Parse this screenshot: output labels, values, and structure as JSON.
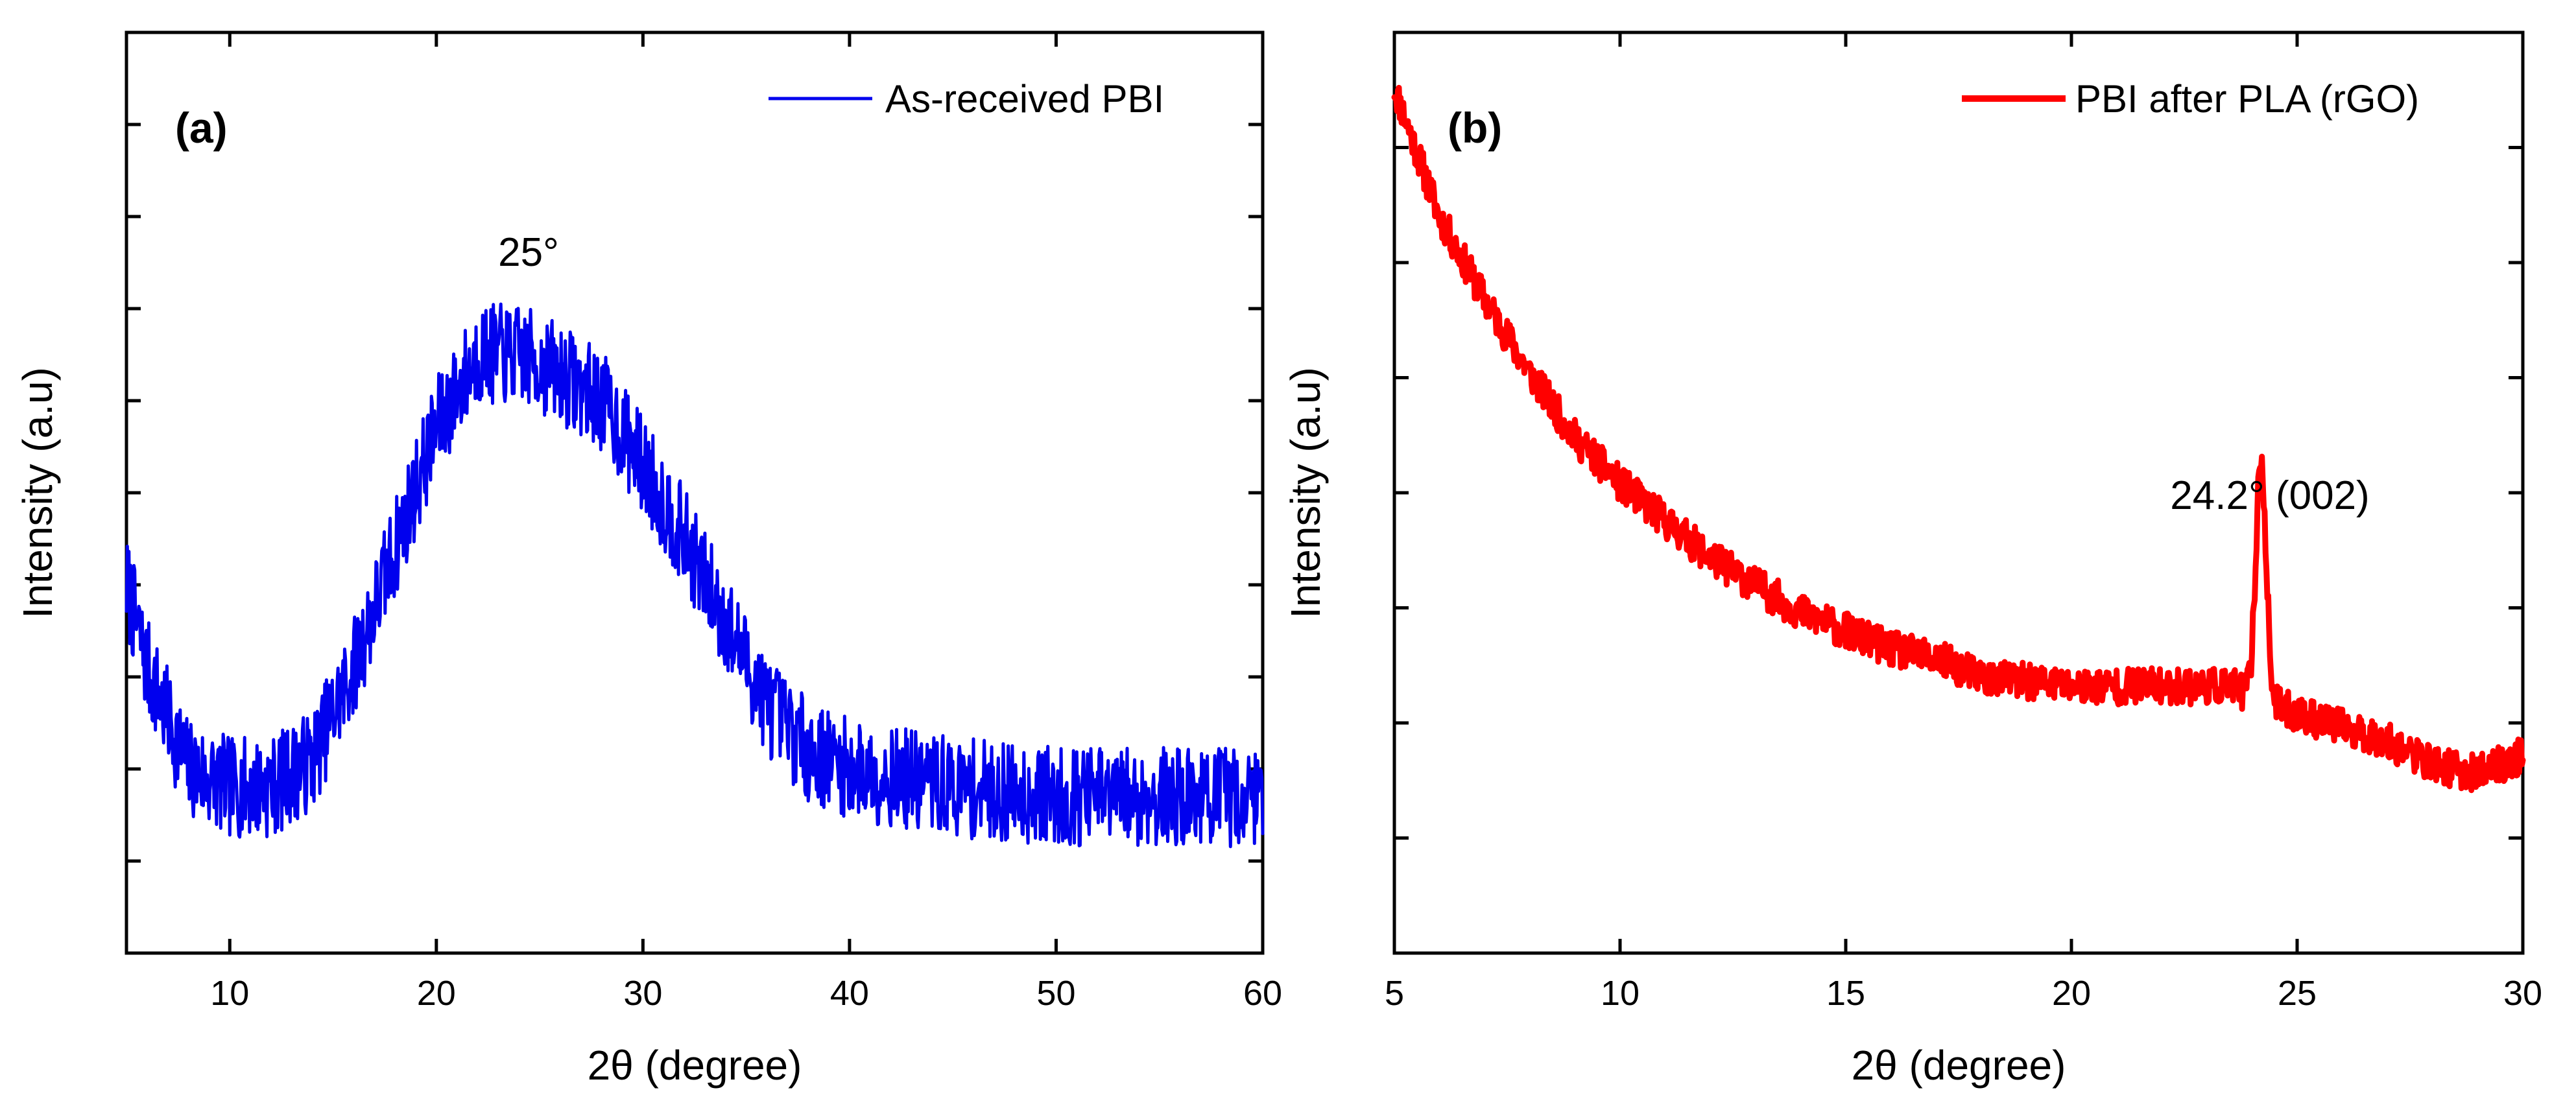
{
  "chart_data": [
    {
      "type": "line",
      "panel_label": "(a)",
      "xlabel": "2θ (degree)",
      "ylabel": "Intensity (a.u)",
      "xlim": [
        5,
        60
      ],
      "ylim": [
        0,
        10
      ],
      "x_ticks": [
        10,
        20,
        30,
        40,
        50,
        60
      ],
      "y_tick_count": 9,
      "legend": {
        "position": "top-right"
      },
      "annotations": [
        {
          "text": "25°",
          "x": 25,
          "y": 8.1
        }
      ],
      "series": [
        {
          "name": "As-received PBI",
          "color": "#0000ee",
          "noise": 0.55,
          "seed": 7,
          "step": 0.04,
          "profile": [
            [
              5,
              4.0
            ],
            [
              6,
              3.1
            ],
            [
              8,
              2.0
            ],
            [
              10,
              1.8
            ],
            [
              12,
              1.8
            ],
            [
              14,
              2.1
            ],
            [
              16,
              3.1
            ],
            [
              18,
              4.4
            ],
            [
              20,
              5.7
            ],
            [
              22,
              6.5
            ],
            [
              24,
              6.5
            ],
            [
              26,
              6.3
            ],
            [
              28,
              6.0
            ],
            [
              30,
              5.3
            ],
            [
              32,
              4.5
            ],
            [
              34,
              3.6
            ],
            [
              36,
              2.7
            ],
            [
              38,
              2.2
            ],
            [
              40,
              2.0
            ],
            [
              45,
              1.8
            ],
            [
              50,
              1.7
            ],
            [
              55,
              1.7
            ],
            [
              60,
              1.7
            ]
          ]
        }
      ]
    },
    {
      "type": "line",
      "panel_label": "(b)",
      "xlabel": "2θ (degree)",
      "ylabel": "Intensity (a.u)",
      "xlim": [
        5,
        30
      ],
      "ylim": [
        0,
        10
      ],
      "x_ticks": [
        5,
        10,
        15,
        20,
        25,
        30
      ],
      "y_tick_count": 7,
      "legend": {
        "position": "top-right"
      },
      "annotations": [
        {
          "text": "24.2° (002)",
          "x": 24.2,
          "y": 6.3
        }
      ],
      "series": [
        {
          "name": "PBI after PLA (rGO)",
          "color": "#ff0000",
          "noise": 0.2,
          "seed": 11,
          "step": 0.02,
          "peak": {
            "center": 24.2,
            "height": 2.6,
            "width": 0.16
          },
          "profile": [
            [
              5,
              9.4
            ],
            [
              6,
              8.0
            ],
            [
              7,
              7.1
            ],
            [
              8,
              6.3
            ],
            [
              9,
              5.6
            ],
            [
              10,
              5.1
            ],
            [
              11,
              4.7
            ],
            [
              12,
              4.3
            ],
            [
              13,
              4.0
            ],
            [
              14,
              3.7
            ],
            [
              15,
              3.5
            ],
            [
              16,
              3.3
            ],
            [
              17,
              3.2
            ],
            [
              18,
              3.0
            ],
            [
              19,
              2.95
            ],
            [
              20,
              2.9
            ],
            [
              22,
              2.9
            ],
            [
              23.5,
              2.9
            ],
            [
              25,
              2.6
            ],
            [
              26,
              2.45
            ],
            [
              27,
              2.3
            ],
            [
              28,
              2.05
            ],
            [
              29,
              1.95
            ],
            [
              30,
              2.15
            ]
          ]
        }
      ]
    }
  ]
}
